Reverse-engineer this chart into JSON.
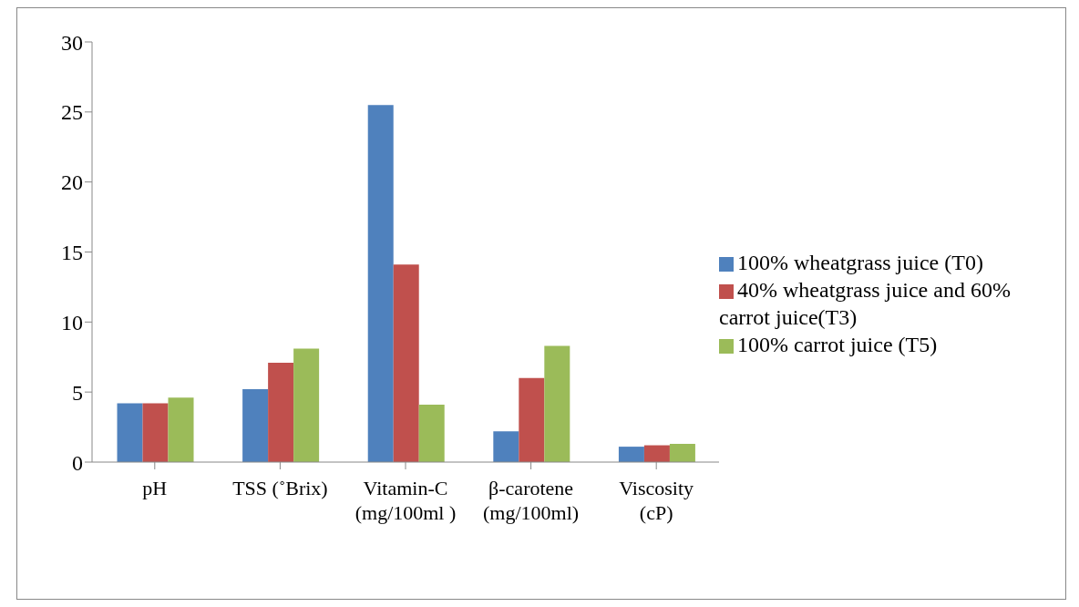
{
  "chart_data": {
    "type": "bar",
    "categories": [
      "pH",
      "TSS (˚Brix)",
      "Vitamin-C\n(mg/100ml )",
      "β-carotene\n(mg/100ml)",
      "Viscosity\n(cP)"
    ],
    "series": [
      {
        "name": "100% wheatgrass juice (T0)",
        "color": "#4f81bd",
        "values": [
          4.2,
          5.2,
          25.5,
          2.2,
          1.1
        ]
      },
      {
        "name": "40% wheatgrass juice and 60% carrot juice(T3)",
        "color": "#c0504d",
        "values": [
          4.2,
          7.1,
          14.1,
          6.0,
          1.2
        ]
      },
      {
        "name": "100% carrot juice (T5)",
        "color": "#9bbb59",
        "values": [
          4.6,
          8.1,
          4.1,
          8.3,
          1.3
        ]
      }
    ],
    "ylim": [
      0,
      30
    ],
    "yticks": [
      0,
      5,
      10,
      15,
      20,
      25,
      30
    ],
    "grid": false,
    "legend": "right"
  }
}
